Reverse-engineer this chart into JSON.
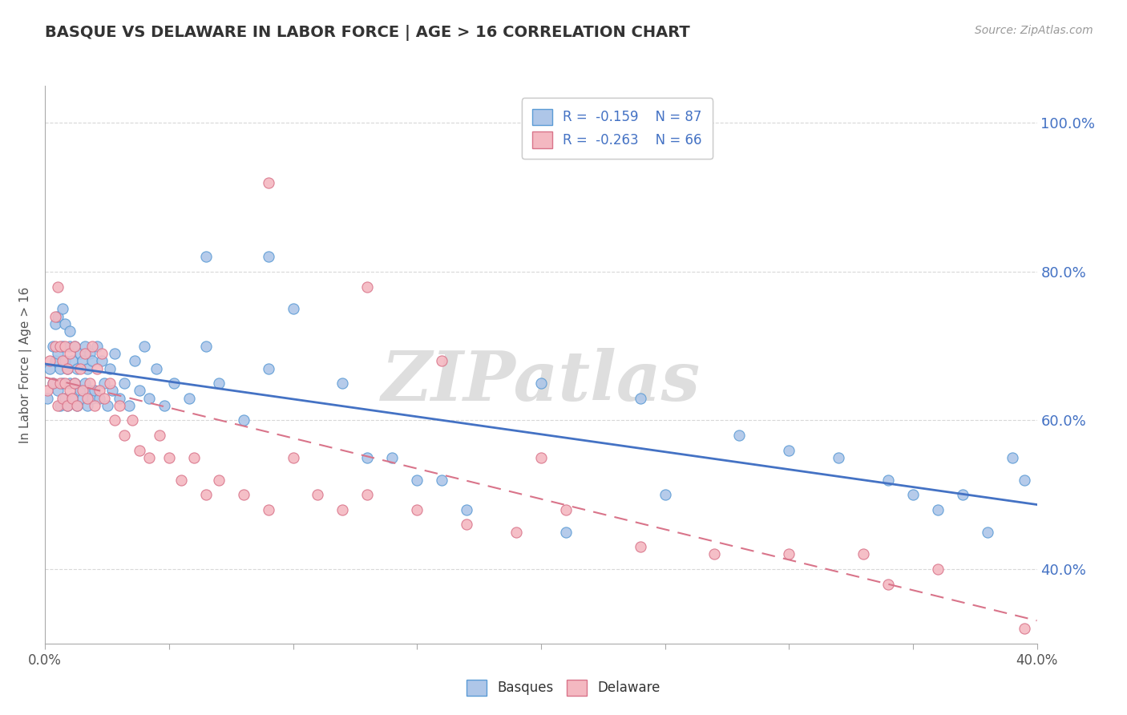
{
  "title": "BASQUE VS DELAWARE IN LABOR FORCE | AGE > 16 CORRELATION CHART",
  "source_text": "Source: ZipAtlas.com",
  "ylabel_label": "In Labor Force | Age > 16",
  "xmin": 0.0,
  "xmax": 0.4,
  "ymin": 0.3,
  "ymax": 1.05,
  "blue_R": -0.159,
  "blue_N": 87,
  "pink_R": -0.263,
  "pink_N": 66,
  "blue_color": "#aec6e8",
  "blue_edge": "#5b9bd5",
  "pink_color": "#f4b8c1",
  "pink_edge": "#d9748a",
  "blue_line_color": "#4472c4",
  "pink_line_color": "#d9748a",
  "watermark": "ZIPatlas",
  "watermark_color": "#d0d0d0",
  "legend_label_blue": "Basques",
  "legend_label_pink": "Delaware",
  "ytick_positions": [
    0.4,
    0.6,
    0.8,
    1.0
  ],
  "ytick_labels": [
    "40.0%",
    "60.0%",
    "80.0%",
    "100.0%"
  ],
  "xtick_positions": [
    0.0,
    0.05,
    0.1,
    0.15,
    0.2,
    0.25,
    0.3,
    0.35,
    0.4
  ],
  "blue_x": [
    0.001,
    0.002,
    0.003,
    0.003,
    0.004,
    0.004,
    0.005,
    0.005,
    0.005,
    0.006,
    0.006,
    0.007,
    0.007,
    0.007,
    0.008,
    0.008,
    0.008,
    0.009,
    0.009,
    0.01,
    0.01,
    0.01,
    0.011,
    0.011,
    0.012,
    0.012,
    0.013,
    0.013,
    0.014,
    0.014,
    0.015,
    0.015,
    0.016,
    0.016,
    0.017,
    0.017,
    0.018,
    0.018,
    0.019,
    0.019,
    0.02,
    0.021,
    0.022,
    0.023,
    0.024,
    0.025,
    0.026,
    0.027,
    0.028,
    0.03,
    0.032,
    0.034,
    0.036,
    0.038,
    0.04,
    0.042,
    0.045,
    0.048,
    0.052,
    0.058,
    0.065,
    0.07,
    0.08,
    0.09,
    0.1,
    0.12,
    0.14,
    0.16,
    0.2,
    0.24,
    0.28,
    0.3,
    0.32,
    0.34,
    0.35,
    0.36,
    0.37,
    0.38,
    0.39,
    0.395,
    0.065,
    0.09,
    0.13,
    0.15,
    0.17,
    0.21,
    0.25
  ],
  "blue_y": [
    0.63,
    0.67,
    0.65,
    0.7,
    0.68,
    0.73,
    0.64,
    0.69,
    0.74,
    0.62,
    0.67,
    0.65,
    0.7,
    0.75,
    0.63,
    0.68,
    0.73,
    0.62,
    0.67,
    0.65,
    0.7,
    0.72,
    0.63,
    0.68,
    0.65,
    0.7,
    0.62,
    0.67,
    0.64,
    0.69,
    0.63,
    0.68,
    0.65,
    0.7,
    0.62,
    0.67,
    0.64,
    0.69,
    0.63,
    0.68,
    0.64,
    0.7,
    0.63,
    0.68,
    0.65,
    0.62,
    0.67,
    0.64,
    0.69,
    0.63,
    0.65,
    0.62,
    0.68,
    0.64,
    0.7,
    0.63,
    0.67,
    0.62,
    0.65,
    0.63,
    0.7,
    0.65,
    0.6,
    0.67,
    0.75,
    0.65,
    0.55,
    0.52,
    0.65,
    0.63,
    0.58,
    0.56,
    0.55,
    0.52,
    0.5,
    0.48,
    0.5,
    0.45,
    0.55,
    0.52,
    0.82,
    0.82,
    0.55,
    0.52,
    0.48,
    0.45,
    0.5
  ],
  "pink_x": [
    0.001,
    0.002,
    0.003,
    0.004,
    0.004,
    0.005,
    0.005,
    0.006,
    0.006,
    0.007,
    0.007,
    0.008,
    0.008,
    0.009,
    0.009,
    0.01,
    0.01,
    0.011,
    0.012,
    0.012,
    0.013,
    0.014,
    0.015,
    0.016,
    0.017,
    0.018,
    0.019,
    0.02,
    0.021,
    0.022,
    0.023,
    0.024,
    0.026,
    0.028,
    0.03,
    0.032,
    0.035,
    0.038,
    0.042,
    0.046,
    0.05,
    0.055,
    0.06,
    0.065,
    0.07,
    0.08,
    0.09,
    0.1,
    0.11,
    0.12,
    0.13,
    0.15,
    0.17,
    0.19,
    0.21,
    0.24,
    0.27,
    0.3,
    0.33,
    0.36,
    0.09,
    0.13,
    0.16,
    0.2,
    0.34,
    0.395
  ],
  "pink_y": [
    0.64,
    0.68,
    0.65,
    0.7,
    0.74,
    0.62,
    0.78,
    0.65,
    0.7,
    0.63,
    0.68,
    0.65,
    0.7,
    0.62,
    0.67,
    0.64,
    0.69,
    0.63,
    0.65,
    0.7,
    0.62,
    0.67,
    0.64,
    0.69,
    0.63,
    0.65,
    0.7,
    0.62,
    0.67,
    0.64,
    0.69,
    0.63,
    0.65,
    0.6,
    0.62,
    0.58,
    0.6,
    0.56,
    0.55,
    0.58,
    0.55,
    0.52,
    0.55,
    0.5,
    0.52,
    0.5,
    0.48,
    0.55,
    0.5,
    0.48,
    0.5,
    0.48,
    0.46,
    0.45,
    0.48,
    0.43,
    0.42,
    0.42,
    0.42,
    0.4,
    0.92,
    0.78,
    0.68,
    0.55,
    0.38,
    0.32
  ],
  "background_color": "#ffffff",
  "grid_color": "#d8d8d8"
}
